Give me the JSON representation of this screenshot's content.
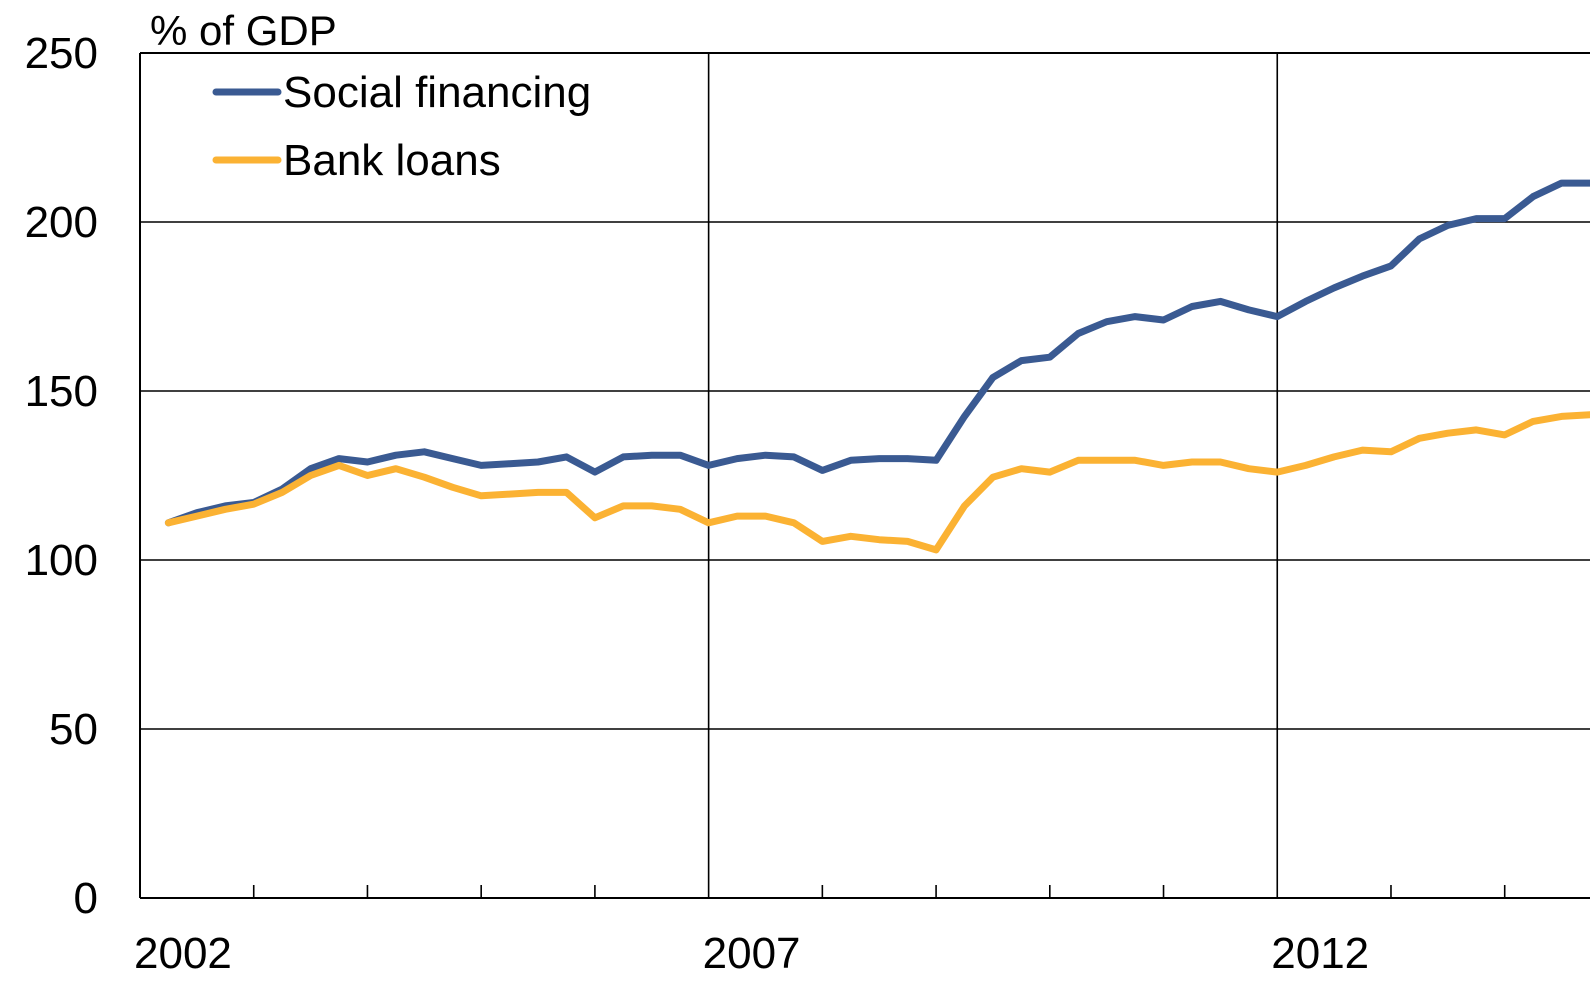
{
  "chart_data": {
    "type": "line",
    "ylabel": "% of GDP",
    "ylim": [
      0,
      250
    ],
    "yticks": [
      0,
      50,
      100,
      150,
      200,
      250
    ],
    "xlim": [
      2002.0,
      2014.75
    ],
    "xtick_labels": [
      {
        "x": 2002,
        "label": "2002"
      },
      {
        "x": 2007,
        "label": "2007"
      },
      {
        "x": 2012,
        "label": "2012"
      }
    ],
    "x_minor_ticks": [
      2003,
      2004,
      2005,
      2006,
      2008,
      2009,
      2010,
      2011,
      2013,
      2014
    ],
    "x_gridlines": [
      2007,
      2012
    ],
    "y_gridlines": [
      50,
      100,
      150,
      200
    ],
    "legend_position": "top-left",
    "x": [
      2002.25,
      2002.5,
      2002.75,
      2003.0,
      2003.25,
      2003.5,
      2003.75,
      2004.0,
      2004.25,
      2004.5,
      2004.75,
      2005.0,
      2005.25,
      2005.5,
      2005.75,
      2006.0,
      2006.25,
      2006.5,
      2006.75,
      2007.0,
      2007.25,
      2007.5,
      2007.75,
      2008.0,
      2008.25,
      2008.5,
      2008.75,
      2009.0,
      2009.25,
      2009.5,
      2009.75,
      2010.0,
      2010.25,
      2010.5,
      2010.75,
      2011.0,
      2011.25,
      2011.5,
      2011.75,
      2012.0,
      2012.25,
      2012.5,
      2012.75,
      2013.0,
      2013.25,
      2013.5,
      2013.75,
      2014.0,
      2014.25,
      2014.5,
      2014.75
    ],
    "series": [
      {
        "name": "Social financing",
        "color": "#3a5a92",
        "values": [
          111,
          114,
          116,
          117,
          121,
          127,
          130,
          129,
          131,
          132,
          130,
          128,
          128.5,
          129,
          130.5,
          126,
          130.5,
          131,
          131,
          128,
          130,
          131,
          130.5,
          126.5,
          129.5,
          130,
          130,
          129.5,
          142.5,
          154,
          159,
          160,
          167,
          170.5,
          172,
          171,
          175,
          176.5,
          174,
          172,
          176.5,
          180.5,
          184,
          187,
          195,
          199,
          201,
          201,
          207.5,
          211.5,
          211.5
        ]
      },
      {
        "name": "Bank loans",
        "color": "#fbb233",
        "values": [
          111,
          113,
          115,
          116.5,
          120,
          125,
          128,
          125,
          127,
          124.5,
          121.5,
          119,
          119.5,
          120,
          120,
          112.5,
          116,
          116,
          115,
          111,
          113,
          113,
          111,
          105.5,
          107,
          106,
          105.5,
          103,
          116,
          124.5,
          127,
          126,
          129.5,
          129.5,
          129.5,
          128,
          129,
          129,
          127,
          126,
          128,
          130.5,
          132.5,
          132,
          136,
          137.5,
          138.5,
          137,
          141,
          142.5,
          143
        ]
      }
    ]
  }
}
